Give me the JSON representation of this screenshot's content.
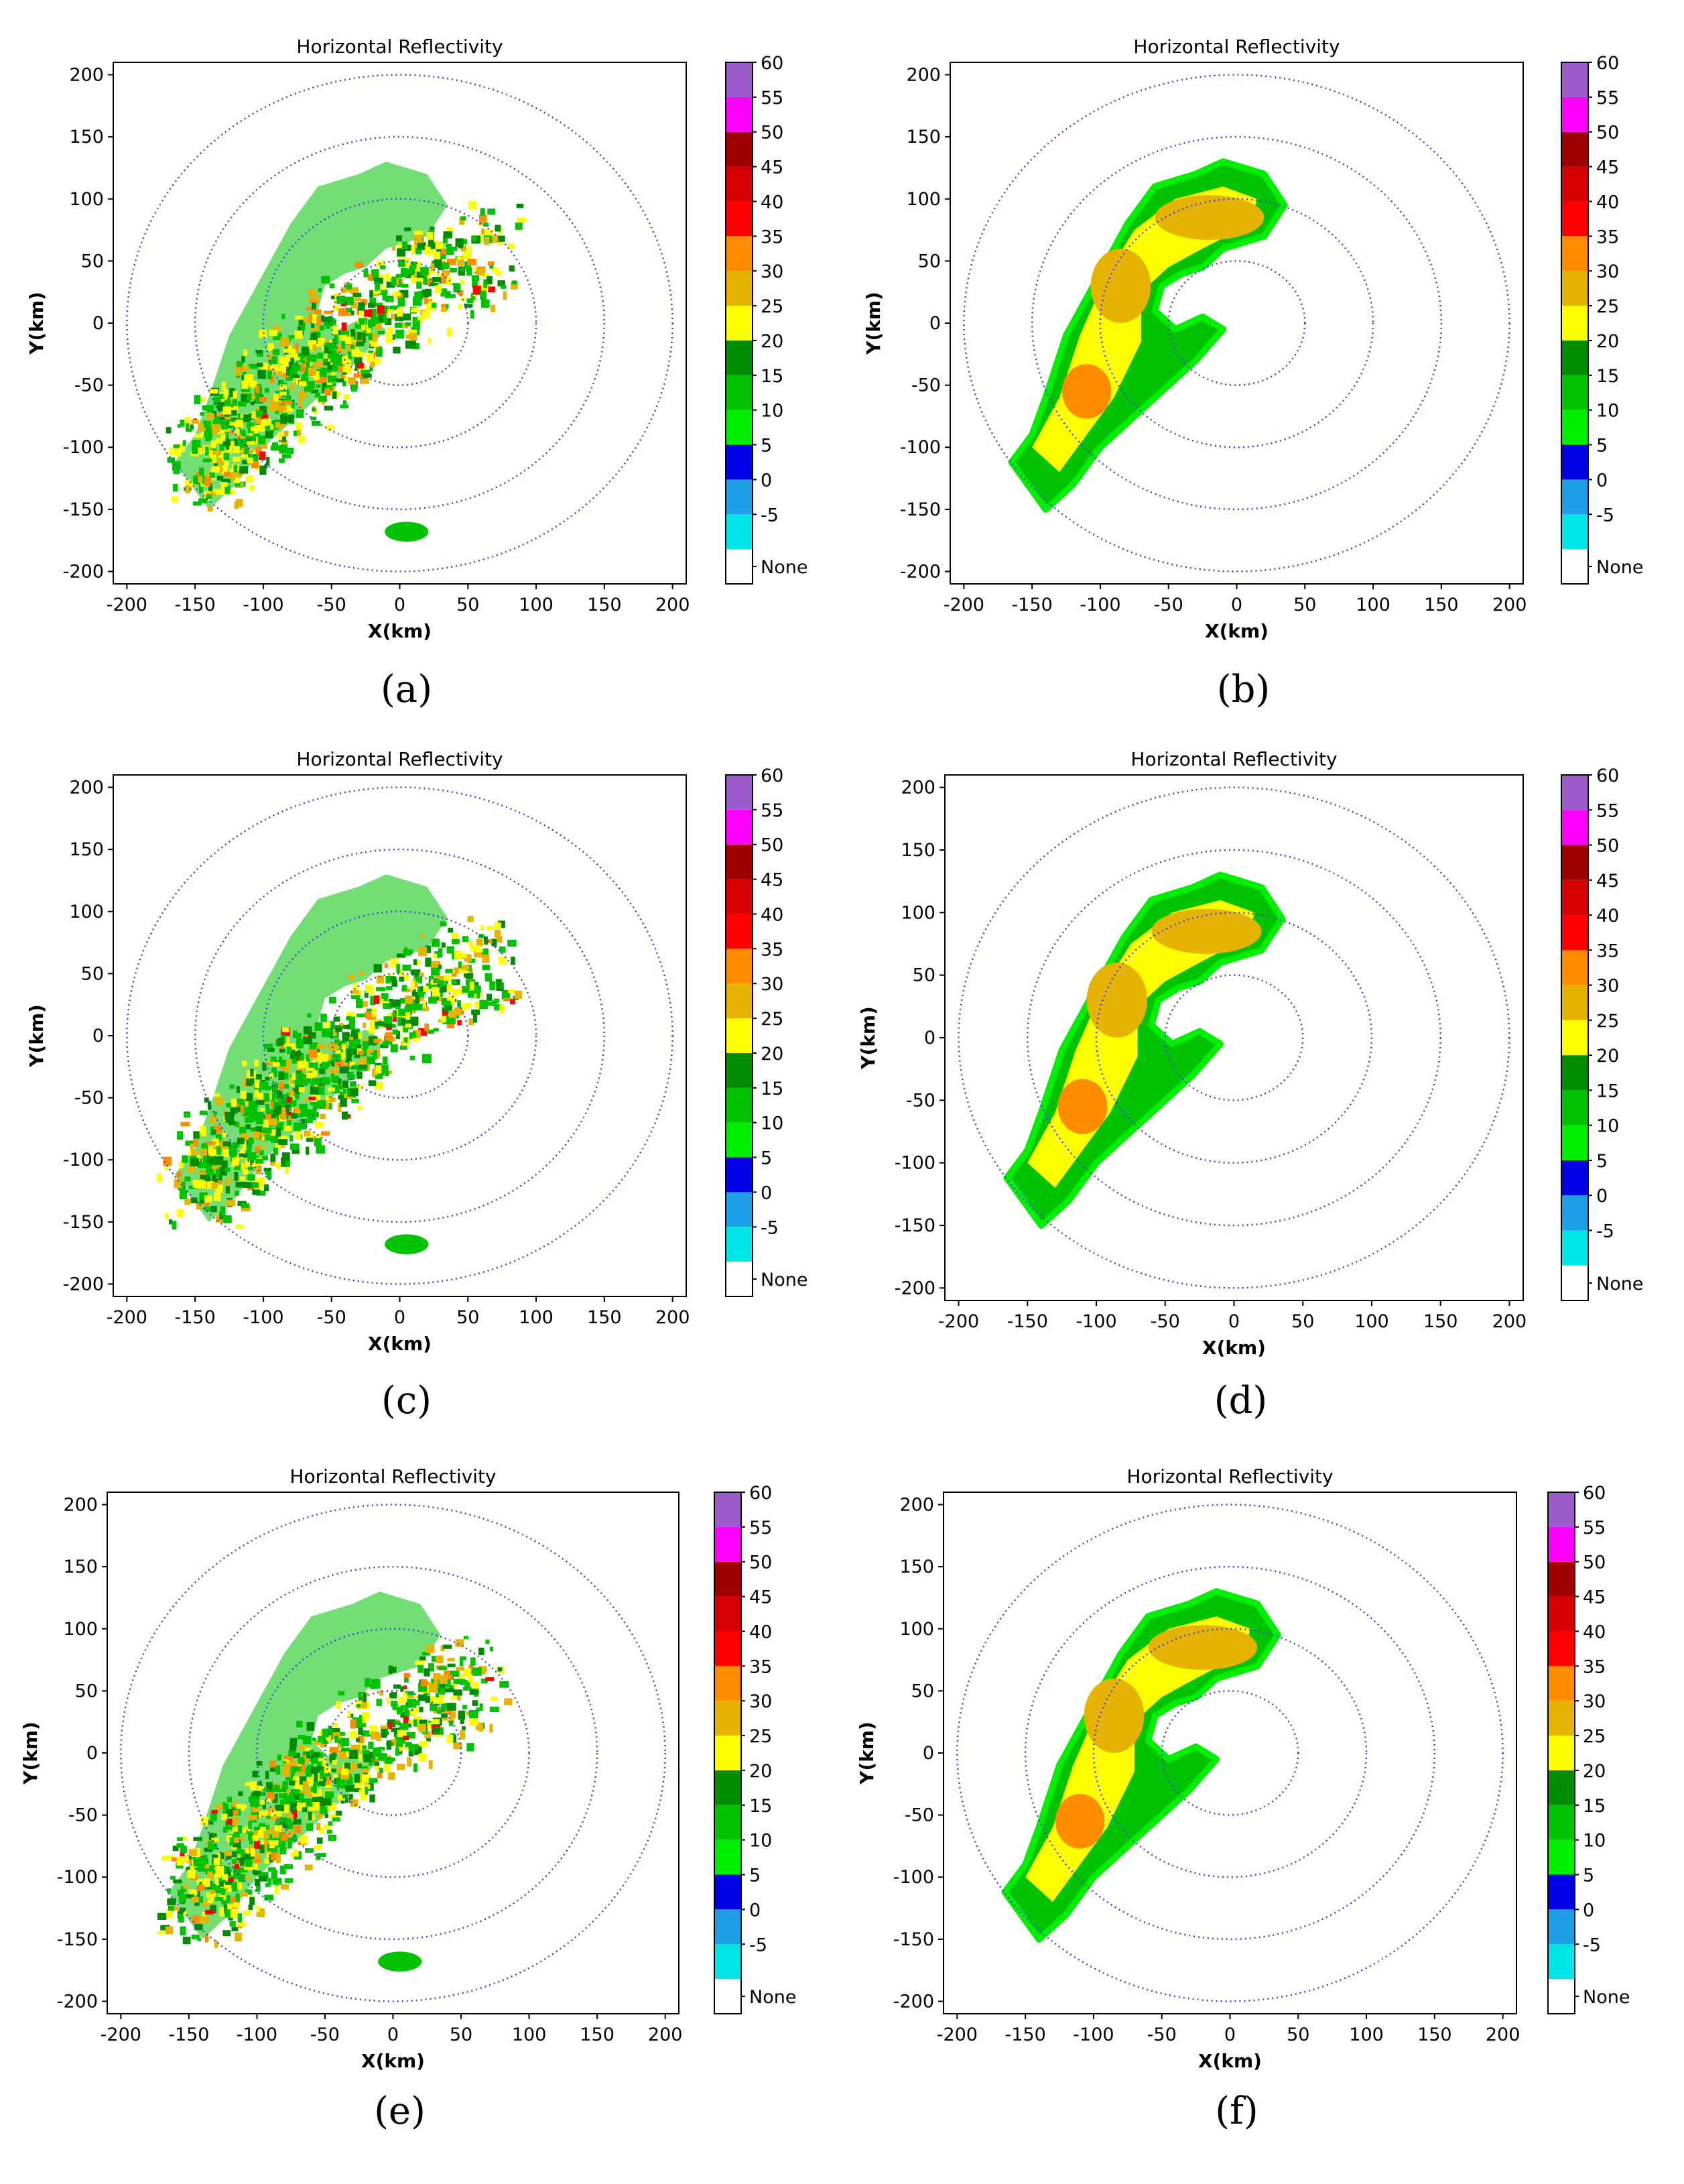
{
  "figure": {
    "panels": [
      {
        "id": "a",
        "caption": "(a)",
        "chart_data": {
          "type": "heatmap",
          "title": "Horizontal Reflectivity",
          "xlabel": "X(km)",
          "ylabel": "Y(km)",
          "xlim": [
            -210,
            210
          ],
          "ylim": [
            -210,
            210
          ],
          "xticks": [
            -200,
            -150,
            -100,
            -50,
            0,
            50,
            100,
            150,
            200
          ],
          "yticks": [
            -200,
            -150,
            -100,
            -50,
            0,
            50,
            100,
            150,
            200
          ],
          "range_rings_km": [
            50,
            100,
            150,
            200
          ],
          "style": "raw",
          "echo_note": "speckled",
          "colorbar": {
            "levels": [
              "None",
              "-5",
              "0",
              "5",
              "10",
              "15",
              "20",
              "25",
              "30",
              "35",
              "40",
              "45",
              "50",
              "55",
              "60"
            ]
          }
        }
      },
      {
        "id": "b",
        "caption": "(b)",
        "chart_data": {
          "type": "heatmap",
          "title": "Horizontal Reflectivity",
          "xlabel": "X(km)",
          "ylabel": "Y(km)",
          "xlim": [
            -210,
            210
          ],
          "ylim": [
            -210,
            210
          ],
          "xticks": [
            -200,
            -150,
            -100,
            -50,
            0,
            50,
            100,
            150,
            200
          ],
          "yticks": [
            -200,
            -150,
            -100,
            -50,
            0,
            50,
            100,
            150,
            200
          ],
          "range_rings_km": [
            50,
            100,
            150,
            200
          ],
          "style": "smooth",
          "colorbar": {
            "levels": [
              "None",
              "-5",
              "0",
              "5",
              "10",
              "15",
              "20",
              "25",
              "30",
              "35",
              "40",
              "45",
              "50",
              "55",
              "60"
            ]
          }
        }
      },
      {
        "id": "c",
        "caption": "(c)",
        "chart_data": {
          "type": "heatmap",
          "title": "Horizontal Reflectivity",
          "xlabel": "X(km)",
          "ylabel": "Y(km)",
          "xlim": [
            -210,
            210
          ],
          "ylim": [
            -210,
            210
          ],
          "xticks": [
            -200,
            -150,
            -100,
            -50,
            0,
            50,
            100,
            150,
            200
          ],
          "yticks": [
            -200,
            -150,
            -100,
            -50,
            0,
            50,
            100,
            150,
            200
          ],
          "range_rings_km": [
            50,
            100,
            150,
            200
          ],
          "style": "raw",
          "colorbar": {
            "levels": [
              "None",
              "-5",
              "0",
              "5",
              "10",
              "15",
              "20",
              "25",
              "30",
              "35",
              "40",
              "45",
              "50",
              "55",
              "60"
            ]
          }
        }
      },
      {
        "id": "d",
        "caption": "(d)",
        "chart_data": {
          "type": "heatmap",
          "title": "Horizontal Reflectivity",
          "xlabel": "X(km)",
          "ylabel": "Y(km)",
          "xlim": [
            -210,
            210
          ],
          "ylim": [
            -210,
            210
          ],
          "xticks": [
            -200,
            -150,
            -100,
            -50,
            0,
            50,
            100,
            150,
            200
          ],
          "yticks": [
            -200,
            -150,
            -100,
            -50,
            0,
            50,
            100,
            150,
            200
          ],
          "range_rings_km": [
            50,
            100,
            150,
            200
          ],
          "style": "smooth",
          "colorbar": {
            "levels": [
              "None",
              "-5",
              "0",
              "5",
              "10",
              "15",
              "20",
              "25",
              "30",
              "35",
              "40",
              "45",
              "50",
              "55",
              "60"
            ]
          }
        }
      },
      {
        "id": "e",
        "caption": "(e)",
        "chart_data": {
          "type": "heatmap",
          "title": "Horizontal Reflectivity",
          "xlabel": "X(km)",
          "ylabel": "Y(km)",
          "xlim": [
            -210,
            210
          ],
          "ylim": [
            -210,
            210
          ],
          "xticks": [
            -200,
            -150,
            -100,
            -50,
            0,
            50,
            100,
            150,
            200
          ],
          "yticks": [
            -200,
            -150,
            -100,
            -50,
            0,
            50,
            100,
            150,
            200
          ],
          "range_rings_km": [
            50,
            100,
            150,
            200
          ],
          "style": "raw",
          "colorbar": {
            "levels": [
              "None",
              "-5",
              "0",
              "5",
              "10",
              "15",
              "20",
              "25",
              "30",
              "35",
              "40",
              "45",
              "50",
              "55",
              "60"
            ]
          }
        }
      },
      {
        "id": "f",
        "caption": "(f)",
        "chart_data": {
          "type": "heatmap",
          "title": "Horizontal Reflectivity",
          "xlabel": "X(km)",
          "ylabel": "Y(km)",
          "xlim": [
            -210,
            210
          ],
          "ylim": [
            -210,
            210
          ],
          "xticks": [
            -200,
            -150,
            -100,
            -50,
            0,
            50,
            100,
            150,
            200
          ],
          "yticks": [
            -200,
            -150,
            -100,
            -50,
            0,
            50,
            100,
            150,
            200
          ],
          "range_rings_km": [
            50,
            100,
            150,
            200
          ],
          "style": "smooth",
          "colorbar": {
            "levels": [
              "None",
              "-5",
              "0",
              "5",
              "10",
              "15",
              "20",
              "25",
              "30",
              "35",
              "40",
              "45",
              "50",
              "55",
              "60"
            ]
          }
        }
      }
    ],
    "colorbar_colors": [
      "#ffffff",
      "#00e5e5",
      "#1ea0e6",
      "#0000e6",
      "#00ee00",
      "#00c200",
      "#008c00",
      "#ffff00",
      "#e6b400",
      "#ff8c00",
      "#ff0000",
      "#d60000",
      "#a00000",
      "#ff00ff",
      "#9a5cc8"
    ],
    "ring_color": "#3a3aee"
  }
}
